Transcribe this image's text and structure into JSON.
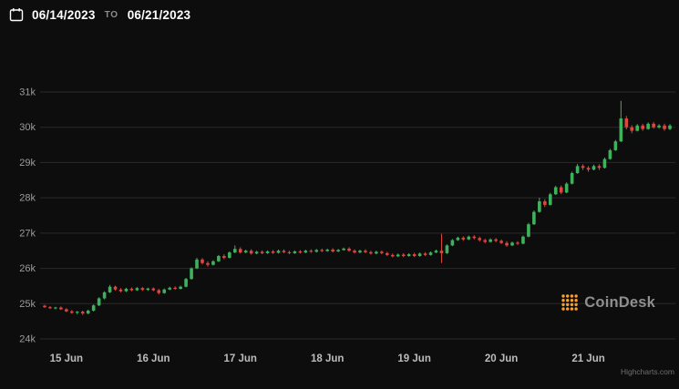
{
  "header": {
    "start_date": "06/14/2023",
    "separator": "TO",
    "end_date": "06/21/2023"
  },
  "branding": {
    "logo_text": "CoinDesk",
    "credit": "Highcharts.com"
  },
  "colors": {
    "background": "#0d0d0d",
    "up": "#3fb15c",
    "down": "#e0463d",
    "grid": "#2a2a2a",
    "y_axis_text": "#9c9c9c",
    "x_axis_text": "#bcbcbc",
    "logo_orange": "#f8a12b"
  },
  "chart_data": {
    "type": "candlestick",
    "title": "",
    "xlabel": "",
    "ylabel": "",
    "ylim": [
      24000,
      31000
    ],
    "grid": "horizontal-only",
    "y_ticks": [
      "31k",
      "30k",
      "29k",
      "28k",
      "27k",
      "26k",
      "25k",
      "24k"
    ],
    "y_values": [
      31000,
      30000,
      29000,
      28000,
      27000,
      26000,
      25000,
      24000
    ],
    "x_ticks": [
      {
        "label": "15 Jun",
        "slot": 4
      },
      {
        "label": "16 Jun",
        "slot": 20
      },
      {
        "label": "17 Jun",
        "slot": 36
      },
      {
        "label": "18 Jun",
        "slot": 52
      },
      {
        "label": "19 Jun",
        "slot": 68
      },
      {
        "label": "20 Jun",
        "slot": 84
      },
      {
        "label": "21 Jun",
        "slot": 100
      }
    ],
    "candles_format": [
      "open",
      "high",
      "low",
      "close"
    ],
    "candles": [
      [
        24940,
        24970,
        24880,
        24900
      ],
      [
        24900,
        24930,
        24850,
        24870
      ],
      [
        24870,
        24910,
        24840,
        24890
      ],
      [
        24890,
        24920,
        24820,
        24840
      ],
      [
        24840,
        24870,
        24760,
        24780
      ],
      [
        24780,
        24820,
        24710,
        24740
      ],
      [
        24740,
        24790,
        24700,
        24770
      ],
      [
        24770,
        24800,
        24680,
        24720
      ],
      [
        24720,
        24830,
        24700,
        24800
      ],
      [
        24800,
        24980,
        24780,
        24950
      ],
      [
        24950,
        25180,
        24930,
        25150
      ],
      [
        25150,
        25350,
        25120,
        25320
      ],
      [
        25320,
        25530,
        25300,
        25480
      ],
      [
        25480,
        25510,
        25370,
        25400
      ],
      [
        25400,
        25440,
        25320,
        25350
      ],
      [
        25350,
        25450,
        25330,
        25420
      ],
      [
        25420,
        25460,
        25350,
        25380
      ],
      [
        25380,
        25470,
        25360,
        25440
      ],
      [
        25440,
        25470,
        25360,
        25390
      ],
      [
        25390,
        25450,
        25360,
        25430
      ],
      [
        25430,
        25460,
        25350,
        25380
      ],
      [
        25380,
        25420,
        25260,
        25300
      ],
      [
        25300,
        25430,
        25280,
        25400
      ],
      [
        25400,
        25480,
        25380,
        25450
      ],
      [
        25450,
        25490,
        25390,
        25420
      ],
      [
        25420,
        25510,
        25400,
        25480
      ],
      [
        25480,
        25730,
        25460,
        25700
      ],
      [
        25700,
        26030,
        25680,
        26000
      ],
      [
        26000,
        26300,
        25980,
        26250
      ],
      [
        26250,
        26290,
        26110,
        26150
      ],
      [
        26150,
        26200,
        26050,
        26100
      ],
      [
        26100,
        26230,
        26080,
        26200
      ],
      [
        26200,
        26380,
        26180,
        26350
      ],
      [
        26350,
        26400,
        26260,
        26300
      ],
      [
        26300,
        26480,
        26280,
        26450
      ],
      [
        26450,
        26650,
        26430,
        26550
      ],
      [
        26550,
        26600,
        26420,
        26450
      ],
      [
        26450,
        26530,
        26430,
        26500
      ],
      [
        26500,
        26540,
        26390,
        26420
      ],
      [
        26420,
        26500,
        26400,
        26470
      ],
      [
        26470,
        26510,
        26400,
        26430
      ],
      [
        26430,
        26510,
        26410,
        26480
      ],
      [
        26480,
        26520,
        26410,
        26440
      ],
      [
        26440,
        26530,
        26420,
        26500
      ],
      [
        26500,
        26540,
        26430,
        26460
      ],
      [
        26460,
        26500,
        26400,
        26430
      ],
      [
        26430,
        26510,
        26410,
        26480
      ],
      [
        26480,
        26520,
        26420,
        26450
      ],
      [
        26450,
        26530,
        26430,
        26500
      ],
      [
        26500,
        26540,
        26440,
        26470
      ],
      [
        26470,
        26550,
        26450,
        26520
      ],
      [
        26520,
        26560,
        26460,
        26490
      ],
      [
        26490,
        26560,
        26470,
        26530
      ],
      [
        26530,
        26570,
        26450,
        26480
      ],
      [
        26480,
        26550,
        26460,
        26520
      ],
      [
        26520,
        26590,
        26500,
        26560
      ],
      [
        26560,
        26600,
        26470,
        26500
      ],
      [
        26500,
        26540,
        26420,
        26450
      ],
      [
        26450,
        26530,
        26430,
        26500
      ],
      [
        26500,
        26540,
        26430,
        26460
      ],
      [
        26460,
        26500,
        26390,
        26420
      ],
      [
        26420,
        26500,
        26400,
        26470
      ],
      [
        26470,
        26510,
        26400,
        26430
      ],
      [
        26430,
        26470,
        26350,
        26380
      ],
      [
        26380,
        26420,
        26310,
        26340
      ],
      [
        26340,
        26420,
        26320,
        26390
      ],
      [
        26390,
        26430,
        26320,
        26350
      ],
      [
        26350,
        26430,
        26330,
        26400
      ],
      [
        26400,
        26440,
        26320,
        26350
      ],
      [
        26350,
        26450,
        26330,
        26420
      ],
      [
        26420,
        26460,
        26350,
        26380
      ],
      [
        26380,
        26480,
        26360,
        26450
      ],
      [
        26450,
        26530,
        26430,
        26500
      ],
      [
        26500,
        26980,
        26150,
        26430
      ],
      [
        26430,
        26680,
        26410,
        26650
      ],
      [
        26650,
        26830,
        26630,
        26800
      ],
      [
        26800,
        26900,
        26780,
        26870
      ],
      [
        26870,
        26910,
        26780,
        26820
      ],
      [
        26820,
        26930,
        26800,
        26900
      ],
      [
        26900,
        26940,
        26820,
        26860
      ],
      [
        26860,
        26900,
        26760,
        26800
      ],
      [
        26800,
        26840,
        26710,
        26750
      ],
      [
        26750,
        26850,
        26730,
        26820
      ],
      [
        26820,
        26860,
        26740,
        26780
      ],
      [
        26780,
        26820,
        26690,
        26720
      ],
      [
        26720,
        26770,
        26610,
        26650
      ],
      [
        26650,
        26760,
        26630,
        26730
      ],
      [
        26730,
        26770,
        26660,
        26700
      ],
      [
        26700,
        26930,
        26680,
        26900
      ],
      [
        26900,
        27290,
        26880,
        27250
      ],
      [
        27250,
        27640,
        27230,
        27600
      ],
      [
        27600,
        28000,
        27580,
        27900
      ],
      [
        27900,
        27960,
        27740,
        27800
      ],
      [
        27800,
        28140,
        27780,
        28100
      ],
      [
        28100,
        28340,
        28080,
        28300
      ],
      [
        28300,
        28350,
        28100,
        28150
      ],
      [
        28150,
        28440,
        28130,
        28400
      ],
      [
        28400,
        28740,
        28380,
        28700
      ],
      [
        28700,
        28960,
        28680,
        28900
      ],
      [
        28900,
        28950,
        28790,
        28850
      ],
      [
        28850,
        28900,
        28740,
        28800
      ],
      [
        28800,
        28940,
        28780,
        28900
      ],
      [
        28900,
        28950,
        28790,
        28850
      ],
      [
        28850,
        29140,
        28830,
        29100
      ],
      [
        29100,
        29390,
        29080,
        29350
      ],
      [
        29350,
        29640,
        29330,
        29600
      ],
      [
        29600,
        30750,
        29580,
        30250
      ],
      [
        30250,
        30320,
        29940,
        30000
      ],
      [
        30000,
        30060,
        29830,
        29900
      ],
      [
        29900,
        30090,
        29880,
        30050
      ],
      [
        30050,
        30100,
        29900,
        29950
      ],
      [
        29950,
        30140,
        29930,
        30100
      ],
      [
        30100,
        30150,
        29960,
        30000
      ],
      [
        30000,
        30090,
        29960,
        30050
      ],
      [
        30050,
        30100,
        29900,
        29950
      ],
      [
        29950,
        30090,
        29920,
        30050
      ]
    ]
  }
}
